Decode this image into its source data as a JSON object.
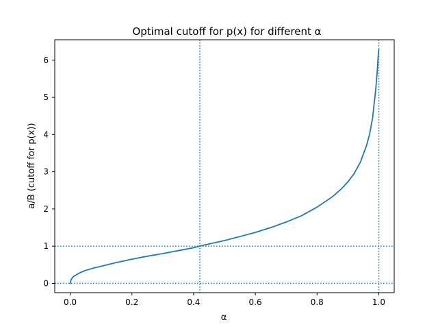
{
  "chart_data": {
    "type": "line",
    "title": "Optimal cutoff for p(x) for different α",
    "xlabel": "α",
    "ylabel": "a/B (cutoff for p(x))",
    "xlim": [
      -0.05,
      1.05
    ],
    "ylim": [
      -0.25,
      6.55
    ],
    "xticks": [
      0.0,
      0.2,
      0.4,
      0.6,
      0.8,
      1.0
    ],
    "xtick_labels": [
      "0.0",
      "0.2",
      "0.4",
      "0.6",
      "0.8",
      "1.0"
    ],
    "yticks": [
      0,
      1,
      2,
      3,
      4,
      5,
      6
    ],
    "ytick_labels": [
      "0",
      "1",
      "2",
      "3",
      "4",
      "5",
      "6"
    ],
    "grid": false,
    "legend": "none",
    "series": [
      {
        "color": "#1f77b4",
        "x": [
          0.0,
          0.003,
          0.01,
          0.03,
          0.05,
          0.08,
          0.1,
          0.15,
          0.2,
          0.25,
          0.3,
          0.35,
          0.4,
          0.42,
          0.45,
          0.5,
          0.55,
          0.6,
          0.65,
          0.7,
          0.75,
          0.8,
          0.85,
          0.88,
          0.9,
          0.92,
          0.94,
          0.96,
          0.97,
          0.98,
          0.99,
          0.995,
          0.998,
          1.0
        ],
        "y": [
          0.0,
          0.1,
          0.18,
          0.28,
          0.35,
          0.42,
          0.46,
          0.56,
          0.65,
          0.73,
          0.8,
          0.88,
          0.96,
          1.0,
          1.06,
          1.15,
          1.26,
          1.37,
          1.5,
          1.65,
          1.82,
          2.05,
          2.33,
          2.55,
          2.73,
          2.95,
          3.25,
          3.7,
          4.0,
          4.45,
          5.2,
          5.7,
          6.1,
          6.28
        ]
      }
    ],
    "reference_lines": {
      "color": "#1f77b4",
      "style": "dotted",
      "horizontal": [
        0.0,
        1.0
      ],
      "vertical": [
        0.42,
        1.0
      ]
    }
  }
}
